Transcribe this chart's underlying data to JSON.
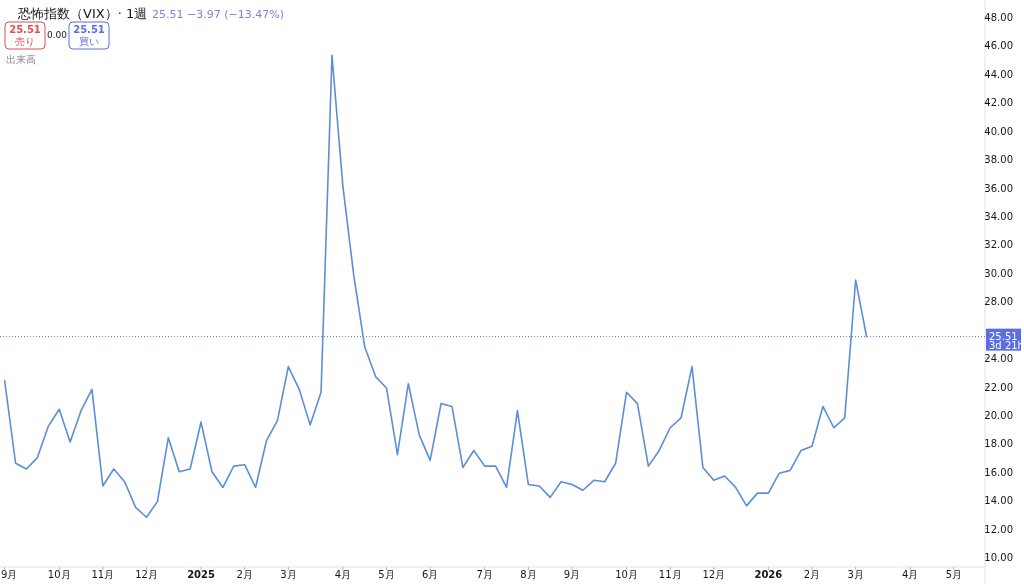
{
  "chart_data": {
    "type": "line",
    "title": "恐怖指数（VIX）· 1週",
    "annotations": [
      "25.51 −3.97 (−13.47%)",
      "25.51",
      "売り",
      "0.00",
      "25.51",
      "買い",
      "出来高",
      "3d 21h"
    ],
    "x": [
      "2024-09-02",
      "2024-09-09",
      "2024-09-16",
      "2024-09-23",
      "2024-09-30",
      "2024-10-07",
      "2024-10-14",
      "2024-10-21",
      "2024-10-28",
      "2024-11-04",
      "2024-11-11",
      "2024-11-18",
      "2024-11-25",
      "2024-12-02",
      "2024-12-09",
      "2024-12-16",
      "2024-12-23",
      "2024-12-30",
      "2025-01-06",
      "2025-01-13",
      "2025-01-20",
      "2025-01-27",
      "2025-02-03",
      "2025-02-10",
      "2025-02-17",
      "2025-02-24",
      "2025-03-03",
      "2025-03-10",
      "2025-03-17",
      "2025-03-24",
      "2025-03-31",
      "2025-04-07",
      "2025-04-14",
      "2025-04-21",
      "2025-04-28",
      "2025-05-05",
      "2025-05-12",
      "2025-05-19",
      "2025-05-26",
      "2025-06-02",
      "2025-06-09",
      "2025-06-16",
      "2025-06-23",
      "2025-06-30",
      "2025-07-07",
      "2025-07-14",
      "2025-07-21",
      "2025-07-28",
      "2025-08-04",
      "2025-08-11",
      "2025-08-18",
      "2025-08-25",
      "2025-09-01",
      "2025-09-08",
      "2025-09-15",
      "2025-09-22",
      "2025-09-29",
      "2025-10-06",
      "2025-10-13",
      "2025-10-20",
      "2025-10-27",
      "2025-11-03",
      "2025-11-10",
      "2025-11-17",
      "2025-11-24",
      "2025-12-01",
      "2025-12-08",
      "2025-12-15",
      "2025-12-22",
      "2025-12-29",
      "2026-01-05",
      "2026-01-12",
      "2026-01-19",
      "2026-01-26",
      "2026-02-02",
      "2026-02-09",
      "2026-02-16",
      "2026-02-23",
      "2026-03-02",
      "2026-03-09"
    ],
    "series": [
      {
        "color": "#5b8ed8",
        "values": [
          22.4,
          16.6,
          16.2,
          17.0,
          19.2,
          20.4,
          18.1,
          20.3,
          21.8,
          15.0,
          16.2,
          15.3,
          13.5,
          12.8,
          13.9,
          18.4,
          16.0,
          16.2,
          19.5,
          16.0,
          14.9,
          16.4,
          16.5,
          14.9,
          18.2,
          19.6,
          23.4,
          21.8,
          19.3,
          21.6,
          45.3,
          36.1,
          29.8,
          24.8,
          22.7,
          21.9,
          17.2,
          22.2,
          18.6,
          16.8,
          20.8,
          20.6,
          16.3,
          17.5,
          16.4,
          16.4,
          14.9,
          20.3,
          15.1,
          15.0,
          14.2,
          15.3,
          15.1,
          14.7,
          15.4,
          15.3,
          16.6,
          21.6,
          20.8,
          16.4,
          17.5,
          19.1,
          19.8,
          23.4,
          16.3,
          15.4,
          15.7,
          14.9,
          13.6,
          14.5,
          14.5,
          15.9,
          16.1,
          17.5,
          17.8,
          20.6,
          19.1,
          19.8,
          29.5,
          25.51
        ]
      }
    ],
    "xlim": [
      "2024-08-30",
      "2026-05-24"
    ],
    "xticks": [
      {
        "value": "2024-09-02",
        "label": "9月"
      },
      {
        "value": "2024-10-07",
        "label": "10月"
      },
      {
        "value": "2024-11-04",
        "label": "11月"
      },
      {
        "value": "2024-12-02",
        "label": "12月"
      },
      {
        "value": "2025-01-06",
        "label": "2025"
      },
      {
        "value": "2025-02-03",
        "label": "2月"
      },
      {
        "value": "2025-03-03",
        "label": "3月"
      },
      {
        "value": "2025-04-07",
        "label": "4月"
      },
      {
        "value": "2025-05-05",
        "label": "5月"
      },
      {
        "value": "2025-06-02",
        "label": "6月"
      },
      {
        "value": "2025-07-07",
        "label": "7月"
      },
      {
        "value": "2025-08-04",
        "label": "8月"
      },
      {
        "value": "2025-09-01",
        "label": "9月"
      },
      {
        "value": "2025-10-06",
        "label": "10月"
      },
      {
        "value": "2025-11-03",
        "label": "11月"
      },
      {
        "value": "2025-12-01",
        "label": "12月"
      },
      {
        "value": "2026-01-05",
        "label": "2026"
      },
      {
        "value": "2026-02-02",
        "label": "2月"
      },
      {
        "value": "2026-03-02",
        "label": "3月"
      },
      {
        "value": "2026-04-06",
        "label": "4月"
      },
      {
        "value": "2026-05-04",
        "label": "5月"
      }
    ],
    "ylim": [
      9.3,
      49.2
    ],
    "yticks": [
      {
        "value": 10,
        "label": "10.00"
      },
      {
        "value": 12,
        "label": "12.00"
      },
      {
        "value": 14,
        "label": "14.00"
      },
      {
        "value": 16,
        "label": "16.00"
      },
      {
        "value": 18,
        "label": "18.00"
      },
      {
        "value": 20,
        "label": "20.00"
      },
      {
        "value": 22,
        "label": "22.00"
      },
      {
        "value": 24,
        "label": "24.00"
      },
      {
        "value": 26,
        "label": null
      },
      {
        "value": 28,
        "label": "28.00"
      },
      {
        "value": 30,
        "label": "30.00"
      },
      {
        "value": 32,
        "label": "32.00"
      },
      {
        "value": 34,
        "label": "34.00"
      },
      {
        "value": 36,
        "label": "36.00"
      },
      {
        "value": 38,
        "label": "38.00"
      },
      {
        "value": 40,
        "label": "40.00"
      },
      {
        "value": 42,
        "label": "42.00"
      },
      {
        "value": 44,
        "label": "44.00"
      },
      {
        "value": 46,
        "label": "46.00"
      },
      {
        "value": 48,
        "label": "48.00"
      }
    ],
    "ref_lines": [
      {
        "axis": "y",
        "value": 25.51,
        "label": "25.51",
        "color": "#5b6ee1",
        "line_style": "dotted"
      }
    ],
    "grid": false
  }
}
